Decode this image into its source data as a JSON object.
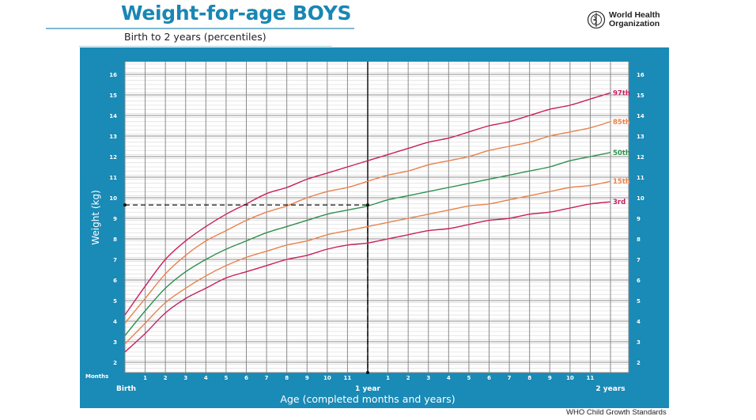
{
  "header": {
    "title": "Weight-for-age BOYS",
    "subtitle": "Birth to 2 years (percentiles)",
    "logo_text_line1": "World Health",
    "logo_text_line2": "Organization"
  },
  "footer": "WHO Child Growth Standards",
  "colors": {
    "panel": "#1a8ab6",
    "title": "#1a86b3",
    "p97": "#c81f5e",
    "p85": "#e8824c",
    "p50": "#2f8f4e",
    "p15": "#e8824c",
    "p3": "#c81f5e"
  },
  "chart_data": {
    "type": "line",
    "title": "Weight-for-age BOYS",
    "subtitle": "Birth to 2 years (percentiles)",
    "xlabel": "Age (completed months and years)",
    "ylabel": "Weight (kg)",
    "x_unit_label": "Months",
    "x_milestones": [
      {
        "month": 0,
        "label": "Birth"
      },
      {
        "month": 12,
        "label": "1 year"
      },
      {
        "month": 24,
        "label": "2 years"
      }
    ],
    "x_tick_labels": [
      "1",
      "2",
      "3",
      "4",
      "5",
      "6",
      "7",
      "8",
      "9",
      "10",
      "11",
      "",
      "1",
      "2",
      "3",
      "4",
      "5",
      "6",
      "7",
      "8",
      "9",
      "10",
      "11"
    ],
    "xlim": [
      0,
      24
    ],
    "ylim": [
      2,
      16
    ],
    "y_ticks": [
      2,
      3,
      4,
      5,
      6,
      7,
      8,
      9,
      10,
      11,
      12,
      13,
      14,
      15,
      16
    ],
    "grid": true,
    "x": [
      0,
      1,
      2,
      3,
      4,
      5,
      6,
      7,
      8,
      9,
      10,
      11,
      12,
      13,
      14,
      15,
      16,
      17,
      18,
      19,
      20,
      21,
      22,
      23,
      24
    ],
    "series": [
      {
        "name": "97th",
        "color_key": "p97",
        "values": [
          4.3,
          5.7,
          7.0,
          7.9,
          8.6,
          9.2,
          9.7,
          10.2,
          10.5,
          10.9,
          11.2,
          11.5,
          11.8,
          12.1,
          12.4,
          12.7,
          12.9,
          13.2,
          13.5,
          13.7,
          14.0,
          14.3,
          14.5,
          14.8,
          15.1
        ]
      },
      {
        "name": "85th",
        "color_key": "p85",
        "values": [
          3.9,
          5.1,
          6.3,
          7.2,
          7.9,
          8.4,
          8.9,
          9.3,
          9.6,
          10.0,
          10.3,
          10.5,
          10.8,
          11.1,
          11.3,
          11.6,
          11.8,
          12.0,
          12.3,
          12.5,
          12.7,
          13.0,
          13.2,
          13.4,
          13.7
        ]
      },
      {
        "name": "50th",
        "color_key": "p50",
        "values": [
          3.3,
          4.5,
          5.6,
          6.4,
          7.0,
          7.5,
          7.9,
          8.3,
          8.6,
          8.9,
          9.2,
          9.4,
          9.6,
          9.9,
          10.1,
          10.3,
          10.5,
          10.7,
          10.9,
          11.1,
          11.3,
          11.5,
          11.8,
          12.0,
          12.2
        ]
      },
      {
        "name": "15th",
        "color_key": "p15",
        "values": [
          2.9,
          3.9,
          4.9,
          5.6,
          6.2,
          6.7,
          7.1,
          7.4,
          7.7,
          7.9,
          8.2,
          8.4,
          8.6,
          8.8,
          9.0,
          9.2,
          9.4,
          9.6,
          9.7,
          9.9,
          10.1,
          10.3,
          10.5,
          10.6,
          10.8
        ]
      },
      {
        "name": "3rd",
        "color_key": "p3",
        "values": [
          2.5,
          3.4,
          4.4,
          5.1,
          5.6,
          6.1,
          6.4,
          6.7,
          7.0,
          7.2,
          7.5,
          7.7,
          7.8,
          8.0,
          8.2,
          8.4,
          8.5,
          8.7,
          8.9,
          9.0,
          9.2,
          9.3,
          9.5,
          9.7,
          9.8
        ]
      }
    ],
    "annotations": [
      {
        "type": "dashed-reference",
        "month": 12,
        "weight": 9.65
      }
    ]
  }
}
